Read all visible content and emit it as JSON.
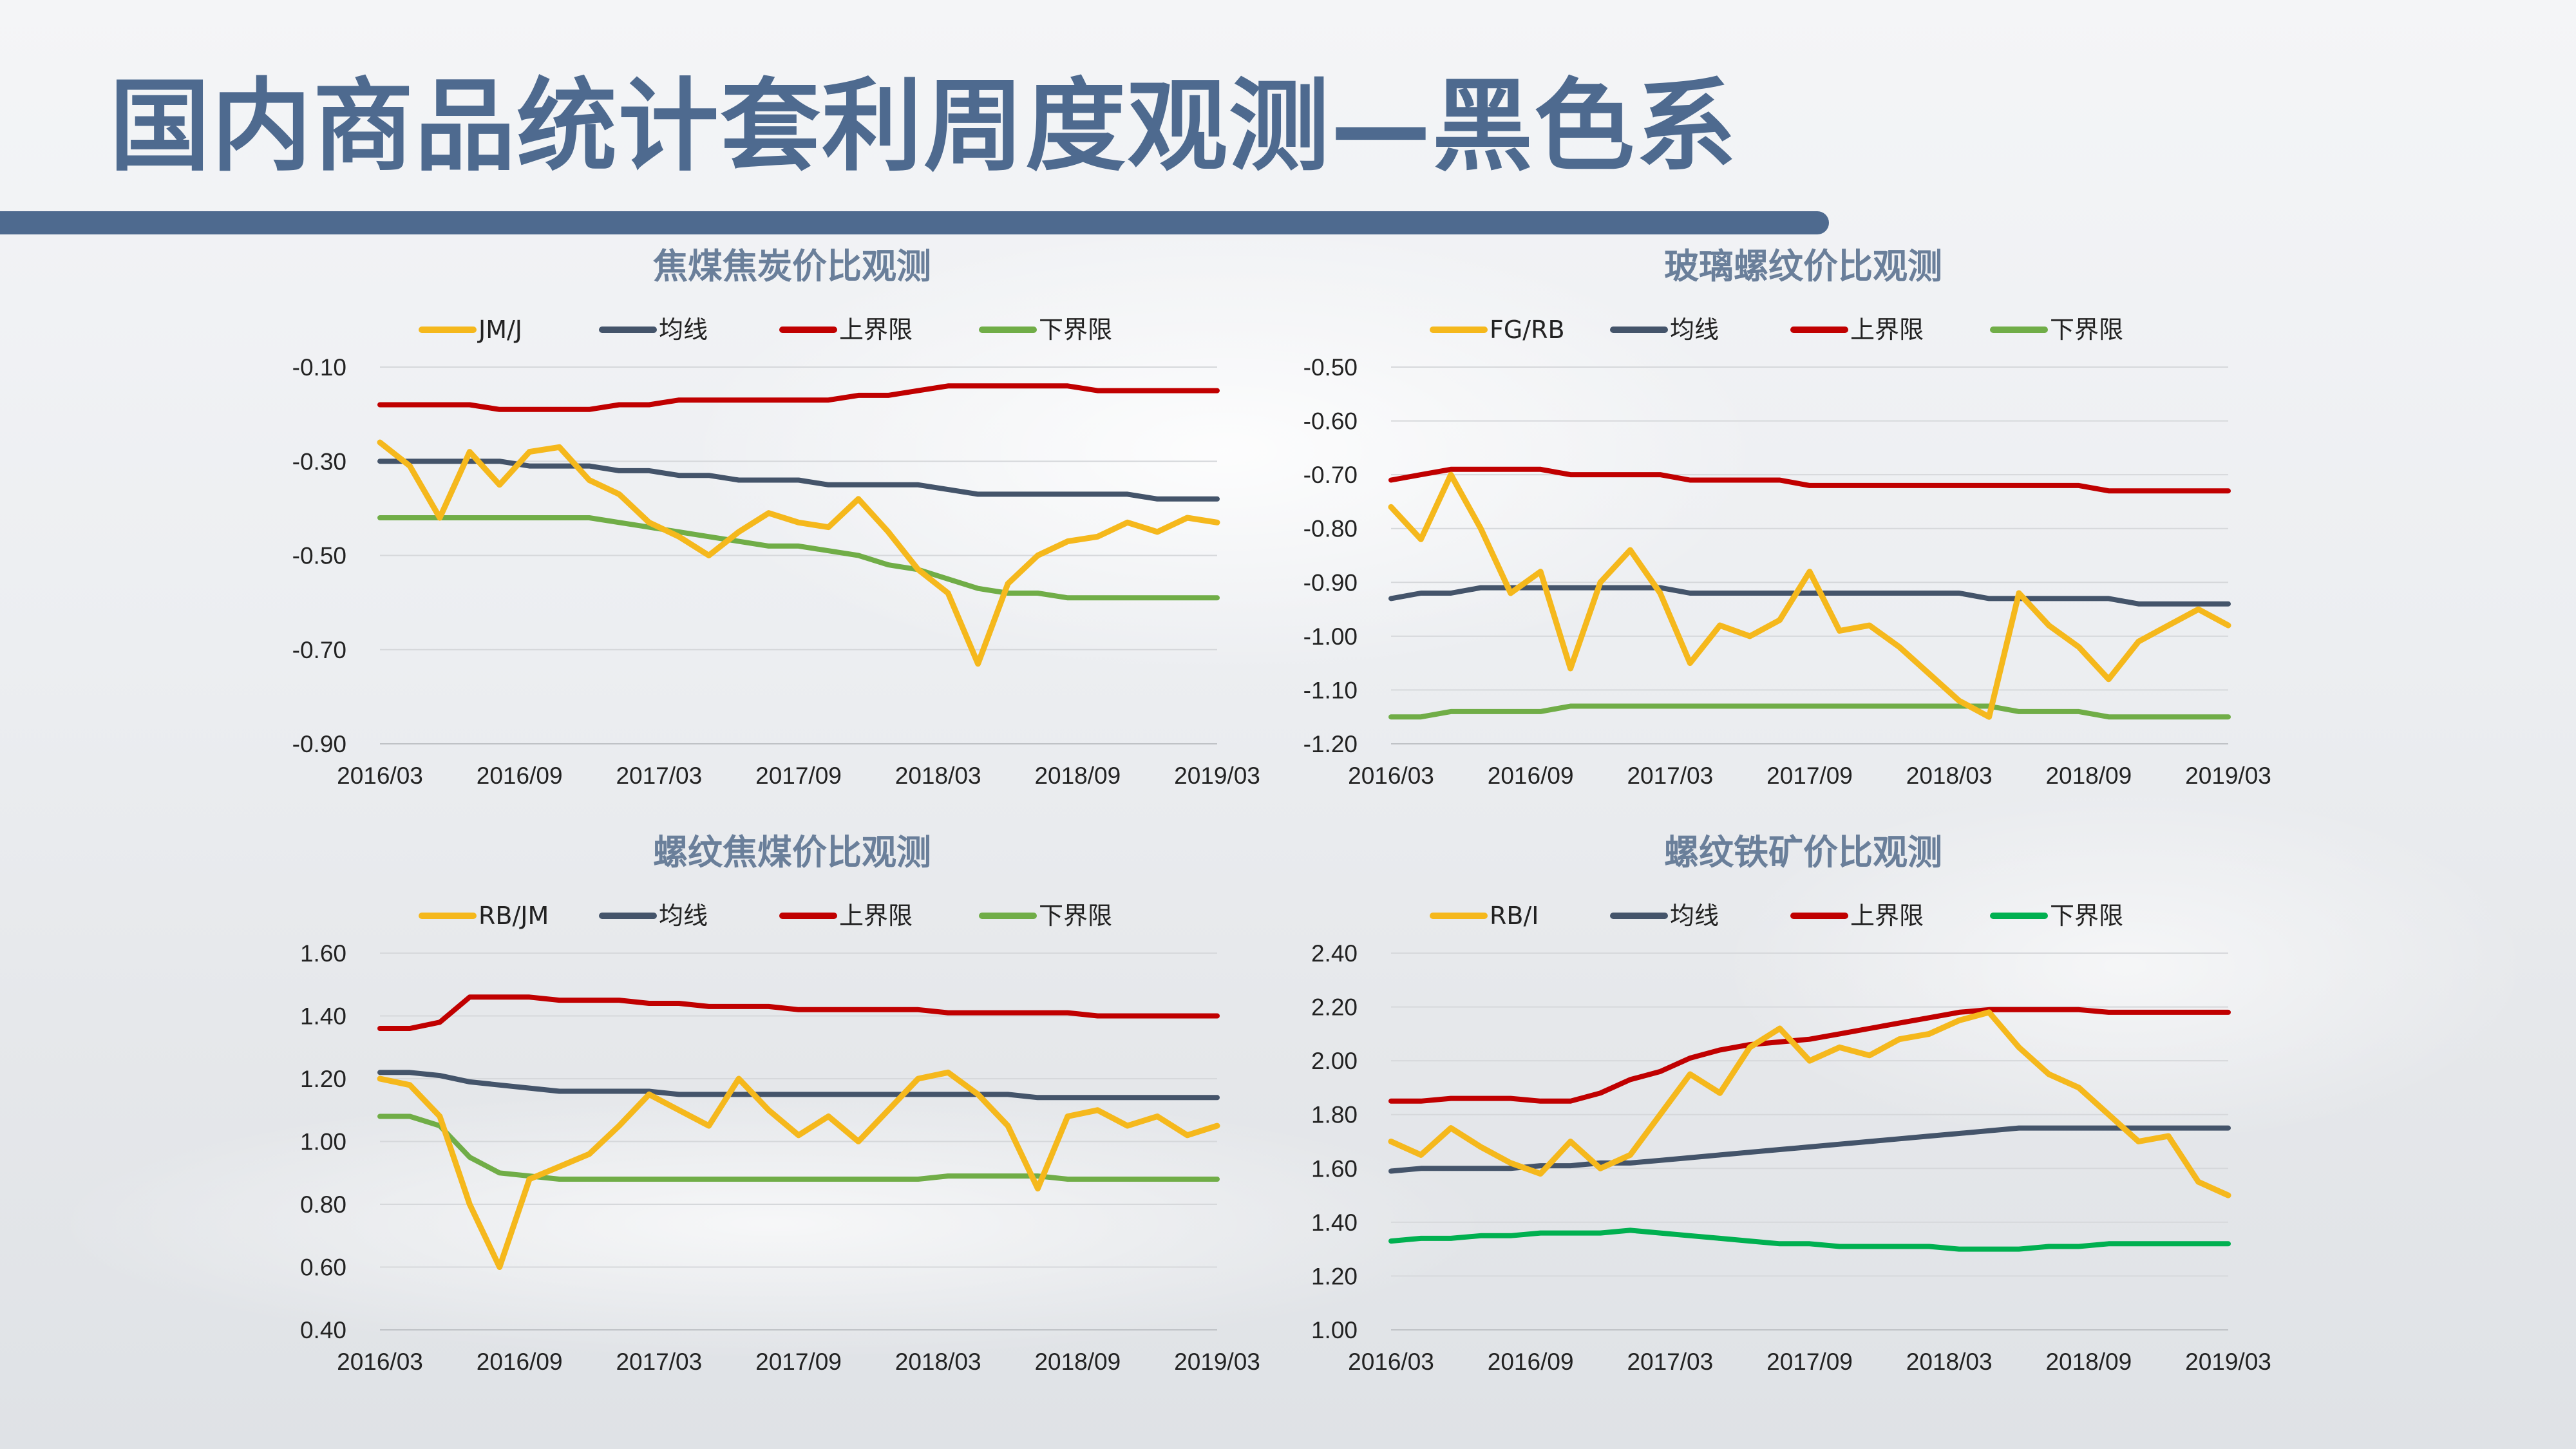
{
  "page": {
    "title": "国内商品统计套利周度观测—黑色系"
  },
  "colors": {
    "ratio": "#f5b81c",
    "mean": "#44546a",
    "upper": "#c00000",
    "lower": "#70ad47",
    "lower_alt": "#00b050",
    "title_blue": "#4e6a8f"
  },
  "chart_data": [
    {
      "type": "line",
      "title": "焦煤焦炭价比观测",
      "x_labels": [
        "2016/03",
        "2016/09",
        "2017/03",
        "2017/09",
        "2018/03",
        "2018/09",
        "2019/03"
      ],
      "ylim": [
        -0.9,
        -0.1
      ],
      "y_ticks": [
        "-0.10",
        "-0.30",
        "-0.50",
        "-0.70",
        "-0.90"
      ],
      "legend": [
        "JM/J",
        "均线",
        "上界限",
        "下界限"
      ],
      "series": [
        {
          "name": "JM/J",
          "role": "ratio",
          "values": [
            -0.26,
            -0.31,
            -0.42,
            -0.28,
            -0.35,
            -0.28,
            -0.27,
            -0.34,
            -0.37,
            -0.43,
            -0.46,
            -0.5,
            -0.45,
            -0.41,
            -0.43,
            -0.44,
            -0.38,
            -0.45,
            -0.53,
            -0.58,
            -0.73,
            -0.56,
            -0.5,
            -0.47,
            -0.46,
            -0.43,
            -0.45,
            -0.42,
            -0.43
          ]
        },
        {
          "name": "均线",
          "role": "mean",
          "values": [
            -0.3,
            -0.3,
            -0.3,
            -0.3,
            -0.3,
            -0.31,
            -0.31,
            -0.31,
            -0.32,
            -0.32,
            -0.33,
            -0.33,
            -0.34,
            -0.34,
            -0.34,
            -0.35,
            -0.35,
            -0.35,
            -0.35,
            -0.36,
            -0.37,
            -0.37,
            -0.37,
            -0.37,
            -0.37,
            -0.37,
            -0.38,
            -0.38,
            -0.38
          ]
        },
        {
          "name": "上界限",
          "role": "upper",
          "values": [
            -0.18,
            -0.18,
            -0.18,
            -0.18,
            -0.19,
            -0.19,
            -0.19,
            -0.19,
            -0.18,
            -0.18,
            -0.17,
            -0.17,
            -0.17,
            -0.17,
            -0.17,
            -0.17,
            -0.16,
            -0.16,
            -0.15,
            -0.14,
            -0.14,
            -0.14,
            -0.14,
            -0.14,
            -0.15,
            -0.15,
            -0.15,
            -0.15,
            -0.15
          ]
        },
        {
          "name": "下界限",
          "role": "lower",
          "values": [
            -0.42,
            -0.42,
            -0.42,
            -0.42,
            -0.42,
            -0.42,
            -0.42,
            -0.42,
            -0.43,
            -0.44,
            -0.45,
            -0.46,
            -0.47,
            -0.48,
            -0.48,
            -0.49,
            -0.5,
            -0.52,
            -0.53,
            -0.55,
            -0.57,
            -0.58,
            -0.58,
            -0.59,
            -0.59,
            -0.59,
            -0.59,
            -0.59,
            -0.59
          ]
        }
      ]
    },
    {
      "type": "line",
      "title": "玻璃螺纹价比观测",
      "x_labels": [
        "2016/03",
        "2016/09",
        "2017/03",
        "2017/09",
        "2018/03",
        "2018/09",
        "2019/03"
      ],
      "ylim": [
        -1.2,
        -0.5
      ],
      "y_ticks": [
        "-0.50",
        "-0.60",
        "-0.70",
        "-0.80",
        "-0.90",
        "-1.00",
        "-1.10",
        "-1.20"
      ],
      "legend": [
        "FG/RB",
        "均线",
        "上界限",
        "下界限"
      ],
      "series": [
        {
          "name": "FG/RB",
          "role": "ratio",
          "values": [
            -0.76,
            -0.82,
            -0.7,
            -0.8,
            -0.92,
            -0.88,
            -1.06,
            -0.9,
            -0.84,
            -0.92,
            -1.05,
            -0.98,
            -1.0,
            -0.97,
            -0.88,
            -0.99,
            -0.98,
            -1.02,
            -1.07,
            -1.12,
            -1.15,
            -0.92,
            -0.98,
            -1.02,
            -1.08,
            -1.01,
            -0.98,
            -0.95,
            -0.98
          ]
        },
        {
          "name": "均线",
          "role": "mean",
          "values": [
            -0.93,
            -0.92,
            -0.92,
            -0.91,
            -0.91,
            -0.91,
            -0.91,
            -0.91,
            -0.91,
            -0.91,
            -0.92,
            -0.92,
            -0.92,
            -0.92,
            -0.92,
            -0.92,
            -0.92,
            -0.92,
            -0.92,
            -0.92,
            -0.93,
            -0.93,
            -0.93,
            -0.93,
            -0.93,
            -0.94,
            -0.94,
            -0.94,
            -0.94
          ]
        },
        {
          "name": "上界限",
          "role": "upper",
          "values": [
            -0.71,
            -0.7,
            -0.69,
            -0.69,
            -0.69,
            -0.69,
            -0.7,
            -0.7,
            -0.7,
            -0.7,
            -0.71,
            -0.71,
            -0.71,
            -0.71,
            -0.72,
            -0.72,
            -0.72,
            -0.72,
            -0.72,
            -0.72,
            -0.72,
            -0.72,
            -0.72,
            -0.72,
            -0.73,
            -0.73,
            -0.73,
            -0.73,
            -0.73
          ]
        },
        {
          "name": "下界限",
          "role": "lower",
          "values": [
            -1.15,
            -1.15,
            -1.14,
            -1.14,
            -1.14,
            -1.14,
            -1.13,
            -1.13,
            -1.13,
            -1.13,
            -1.13,
            -1.13,
            -1.13,
            -1.13,
            -1.13,
            -1.13,
            -1.13,
            -1.13,
            -1.13,
            -1.13,
            -1.13,
            -1.14,
            -1.14,
            -1.14,
            -1.15,
            -1.15,
            -1.15,
            -1.15,
            -1.15
          ]
        }
      ]
    },
    {
      "type": "line",
      "title": "螺纹焦煤价比观测",
      "x_labels": [
        "2016/03",
        "2016/09",
        "2017/03",
        "2017/09",
        "2018/03",
        "2018/09",
        "2019/03"
      ],
      "ylim": [
        0.4,
        1.6
      ],
      "y_ticks": [
        "1.60",
        "1.40",
        "1.20",
        "1.00",
        "0.80",
        "0.60",
        "0.40"
      ],
      "legend": [
        "RB/JM",
        "均线",
        "上界限",
        "下界限"
      ],
      "series": [
        {
          "name": "RB/JM",
          "role": "ratio",
          "values": [
            1.2,
            1.18,
            1.08,
            0.8,
            0.6,
            0.88,
            0.92,
            0.96,
            1.05,
            1.15,
            1.1,
            1.05,
            1.2,
            1.1,
            1.02,
            1.08,
            1.0,
            1.1,
            1.2,
            1.22,
            1.15,
            1.05,
            0.85,
            1.08,
            1.1,
            1.05,
            1.08,
            1.02,
            1.05
          ]
        },
        {
          "name": "均线",
          "role": "mean",
          "values": [
            1.22,
            1.22,
            1.21,
            1.19,
            1.18,
            1.17,
            1.16,
            1.16,
            1.16,
            1.16,
            1.15,
            1.15,
            1.15,
            1.15,
            1.15,
            1.15,
            1.15,
            1.15,
            1.15,
            1.15,
            1.15,
            1.15,
            1.14,
            1.14,
            1.14,
            1.14,
            1.14,
            1.14,
            1.14
          ]
        },
        {
          "name": "上界限",
          "role": "upper",
          "values": [
            1.36,
            1.36,
            1.38,
            1.46,
            1.46,
            1.46,
            1.45,
            1.45,
            1.45,
            1.44,
            1.44,
            1.43,
            1.43,
            1.43,
            1.42,
            1.42,
            1.42,
            1.42,
            1.42,
            1.41,
            1.41,
            1.41,
            1.41,
            1.41,
            1.4,
            1.4,
            1.4,
            1.4,
            1.4
          ]
        },
        {
          "name": "下界限",
          "role": "lower",
          "values": [
            1.08,
            1.08,
            1.05,
            0.95,
            0.9,
            0.89,
            0.88,
            0.88,
            0.88,
            0.88,
            0.88,
            0.88,
            0.88,
            0.88,
            0.88,
            0.88,
            0.88,
            0.88,
            0.88,
            0.89,
            0.89,
            0.89,
            0.89,
            0.88,
            0.88,
            0.88,
            0.88,
            0.88,
            0.88
          ]
        }
      ]
    },
    {
      "type": "line",
      "title": "螺纹铁矿价比观测",
      "x_labels": [
        "2016/03",
        "2016/09",
        "2017/03",
        "2017/09",
        "2018/03",
        "2018/09",
        "2019/03"
      ],
      "ylim": [
        1.0,
        2.4
      ],
      "y_ticks": [
        "2.40",
        "2.20",
        "2.00",
        "1.80",
        "1.60",
        "1.40",
        "1.20",
        "1.00"
      ],
      "legend": [
        "RB/I",
        "均线",
        "上界限",
        "下界限"
      ],
      "series": [
        {
          "name": "RB/I",
          "role": "ratio",
          "values": [
            1.7,
            1.65,
            1.75,
            1.68,
            1.62,
            1.58,
            1.7,
            1.6,
            1.65,
            1.8,
            1.95,
            1.88,
            2.05,
            2.12,
            2.0,
            2.05,
            2.02,
            2.08,
            2.1,
            2.15,
            2.18,
            2.05,
            1.95,
            1.9,
            1.8,
            1.7,
            1.72,
            1.55,
            1.5
          ]
        },
        {
          "name": "均线",
          "role": "mean",
          "values": [
            1.59,
            1.6,
            1.6,
            1.6,
            1.6,
            1.61,
            1.61,
            1.62,
            1.62,
            1.63,
            1.64,
            1.65,
            1.66,
            1.67,
            1.68,
            1.69,
            1.7,
            1.71,
            1.72,
            1.73,
            1.74,
            1.75,
            1.75,
            1.75,
            1.75,
            1.75,
            1.75,
            1.75,
            1.75
          ]
        },
        {
          "name": "上界限",
          "role": "upper",
          "values": [
            1.85,
            1.85,
            1.86,
            1.86,
            1.86,
            1.85,
            1.85,
            1.88,
            1.93,
            1.96,
            2.01,
            2.04,
            2.06,
            2.07,
            2.08,
            2.1,
            2.12,
            2.14,
            2.16,
            2.18,
            2.19,
            2.19,
            2.19,
            2.19,
            2.18,
            2.18,
            2.18,
            2.18,
            2.18
          ]
        },
        {
          "name": "下界限",
          "role": "lower_alt",
          "values": [
            1.33,
            1.34,
            1.34,
            1.35,
            1.35,
            1.36,
            1.36,
            1.36,
            1.37,
            1.36,
            1.35,
            1.34,
            1.33,
            1.32,
            1.32,
            1.31,
            1.31,
            1.31,
            1.31,
            1.3,
            1.3,
            1.3,
            1.31,
            1.31,
            1.32,
            1.32,
            1.32,
            1.32,
            1.32
          ]
        }
      ]
    }
  ]
}
